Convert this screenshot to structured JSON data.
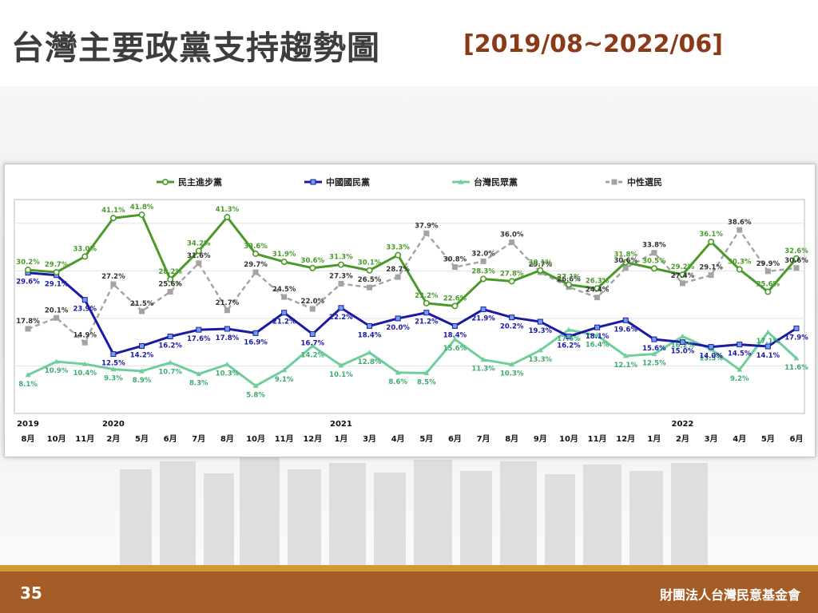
{
  "title": "台灣主要政黨支持趨勢圖",
  "subtitle": "[2019/08~2022/06]",
  "footer": {
    "page_number": "35",
    "organization": "財團法人台灣民意基金會"
  },
  "colors": {
    "dpp": "#4a9a2a",
    "kmt": "#1a1aa6",
    "tpp": "#6fcf9b",
    "neutral": "#a3a3a3",
    "footer_bg": "#a65c27",
    "footer_line": "#d29a2e",
    "title": "#3d3d3d",
    "subtitle": "#8b3a18"
  },
  "chart_data": {
    "type": "line",
    "years": [
      {
        "label": "2019",
        "index": 0
      },
      {
        "label": "2020",
        "index": 3
      },
      {
        "label": "2021",
        "index": 11
      },
      {
        "label": "2022",
        "index": 23
      }
    ],
    "categories": [
      "8月",
      "10月",
      "11月",
      "2月",
      "5月",
      "6月",
      "7月",
      "8月",
      "10月",
      "11月",
      "12月",
      "1月",
      "3月",
      "4月",
      "5月",
      "6月",
      "7月",
      "8月",
      "9月",
      "10月",
      "11月",
      "12月",
      "1月",
      "2月",
      "3月",
      "4月",
      "5月",
      "6月"
    ],
    "series": [
      {
        "name": "民主進步黨",
        "key": "dpp",
        "marker": "circle",
        "values": [
          30.2,
          29.7,
          33.0,
          41.1,
          41.8,
          28.2,
          34.2,
          41.3,
          33.6,
          31.9,
          30.6,
          31.3,
          30.1,
          33.3,
          23.2,
          22.6,
          28.3,
          27.8,
          30.1,
          27.1,
          26.3,
          31.8,
          30.5,
          29.2,
          36.1,
          30.3,
          25.6,
          32.6
        ]
      },
      {
        "name": "中國國民黨",
        "key": "kmt",
        "marker": "square",
        "values": [
          29.6,
          29.1,
          23.9,
          12.5,
          14.2,
          16.2,
          17.6,
          17.8,
          16.9,
          21.2,
          16.7,
          22.2,
          18.4,
          20.0,
          21.2,
          18.4,
          21.9,
          20.2,
          19.3,
          16.2,
          18.1,
          19.6,
          15.6,
          15.0,
          14.0,
          14.5,
          14.1,
          17.9
        ]
      },
      {
        "name": "台灣民眾黨",
        "key": "tpp",
        "marker": "triangle",
        "values": [
          8.1,
          10.9,
          10.4,
          9.3,
          8.9,
          10.7,
          8.3,
          10.3,
          5.8,
          9.1,
          14.2,
          10.1,
          12.8,
          8.6,
          8.5,
          15.6,
          11.3,
          10.3,
          13.3,
          17.6,
          16.4,
          12.1,
          12.5,
          16.2,
          13.5,
          9.2,
          17.1,
          11.6
        ]
      },
      {
        "name": "中性選民",
        "key": "neutral",
        "marker": "square",
        "dashed": true,
        "values": [
          17.8,
          20.1,
          14.9,
          27.2,
          21.5,
          25.6,
          31.6,
          21.7,
          29.7,
          24.5,
          22.0,
          27.3,
          26.5,
          28.7,
          37.9,
          30.8,
          32.0,
          36.0,
          29.7,
          26.6,
          24.4,
          30.6,
          33.8,
          27.4,
          29.1,
          38.6,
          29.9,
          30.6
        ]
      }
    ],
    "ylim": [
      0,
      45
    ],
    "grid": true,
    "legend_position": "top"
  }
}
